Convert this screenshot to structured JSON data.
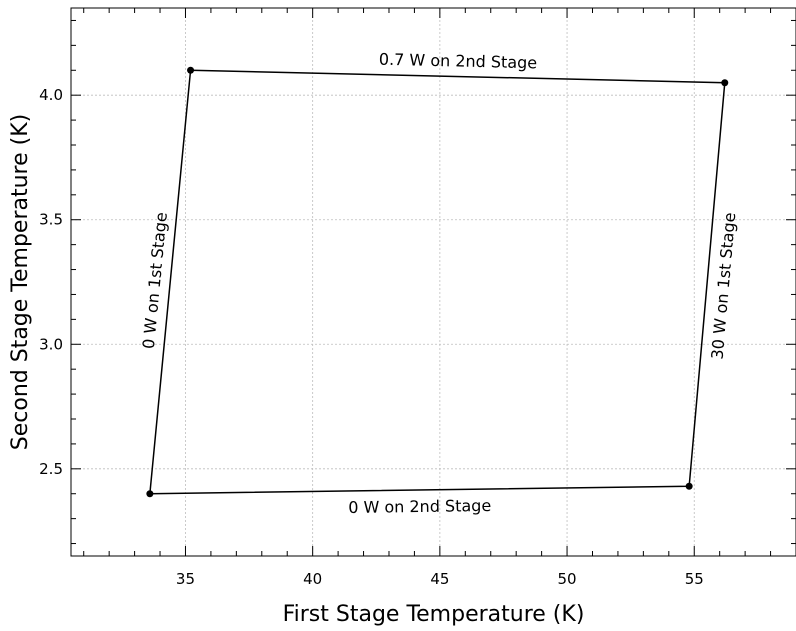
{
  "chart_data": {
    "type": "line",
    "title": "",
    "xlabel": "First Stage Temperature (K)",
    "ylabel": "Second Stage Temperature (K)",
    "xlim": [
      30.5,
      59
    ],
    "ylim": [
      2.15,
      4.35
    ],
    "x_ticks": [
      35,
      40,
      45,
      50,
      55
    ],
    "y_ticks": [
      2.5,
      3.0,
      3.5,
      4.0
    ],
    "x_tick_labels": [
      "35",
      "40",
      "45",
      "50",
      "55"
    ],
    "y_tick_labels": [
      "2.5",
      "3.0",
      "3.5",
      "4.0"
    ],
    "x_minor_step": 1,
    "y_minor_step": 0.1,
    "grid": true,
    "series": [
      {
        "x": [
          35.2,
          56.2,
          54.8,
          33.6,
          35.2
        ],
        "y": [
          4.1,
          4.05,
          2.43,
          2.4,
          4.1
        ]
      }
    ],
    "points": [
      {
        "x": 35.2,
        "y": 4.1
      },
      {
        "x": 56.2,
        "y": 4.05
      },
      {
        "x": 54.8,
        "y": 2.43
      },
      {
        "x": 33.6,
        "y": 2.4
      }
    ],
    "annotations": [
      {
        "text": "0.7 W on 2nd Stage",
        "from": 0,
        "to": 1,
        "side": "above"
      },
      {
        "text": "30 W on 1st Stage",
        "from": 1,
        "to": 2,
        "side": "right"
      },
      {
        "text": "0 W on 2nd Stage",
        "from": 3,
        "to": 2,
        "side": "below"
      },
      {
        "text": "0 W on 1st Stage",
        "from": 3,
        "to": 0,
        "side": "left"
      }
    ]
  }
}
